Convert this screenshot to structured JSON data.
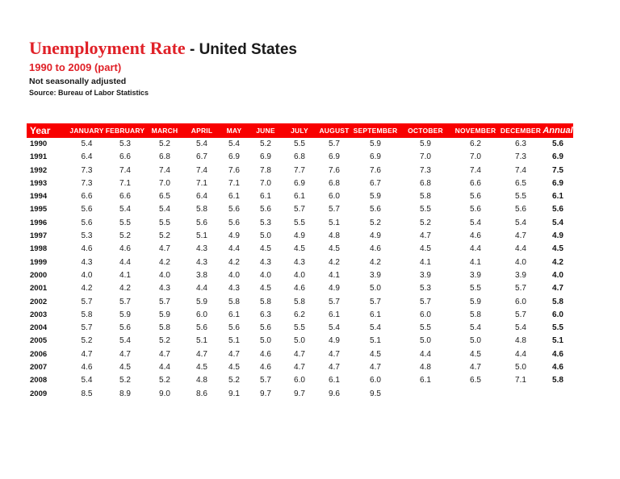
{
  "page": {
    "title_red": "Unemployment Rate",
    "title_black": " - United States",
    "subtitle": "1990 to 2009 (part)",
    "note": "Not seasonally adjusted",
    "source": "Source: Bureau of Labor Statistics"
  },
  "colors": {
    "accent_red": "#e02128",
    "header_bar_red": "#f80000",
    "header_text": "#ffffff"
  },
  "table": {
    "year_header": "Year",
    "month_headers": [
      "JANUARY",
      "FEBRUARY",
      "MARCH",
      "APRIL",
      "MAY",
      "JUNE",
      "JULY",
      "AUGUST",
      "SEPTEMBER",
      "OCTOBER",
      "NOVEMBER",
      "DECEMBER"
    ],
    "annual_header": "Annual",
    "rows": [
      {
        "year": "1990",
        "values": [
          "5.4",
          "5.3",
          "5.2",
          "5.4",
          "5.4",
          "5.2",
          "5.5",
          "5.7",
          "5.9",
          "5.9",
          "6.2",
          "6.3"
        ],
        "annual": "5.6"
      },
      {
        "year": "1991",
        "values": [
          "6.4",
          "6.6",
          "6.8",
          "6.7",
          "6.9",
          "6.9",
          "6.8",
          "6.9",
          "6.9",
          "7.0",
          "7.0",
          "7.3"
        ],
        "annual": "6.9"
      },
      {
        "year": "1992",
        "values": [
          "7.3",
          "7.4",
          "7.4",
          "7.4",
          "7.6",
          "7.8",
          "7.7",
          "7.6",
          "7.6",
          "7.3",
          "7.4",
          "7.4"
        ],
        "annual": "7.5"
      },
      {
        "year": "1993",
        "values": [
          "7.3",
          "7.1",
          "7.0",
          "7.1",
          "7.1",
          "7.0",
          "6.9",
          "6.8",
          "6.7",
          "6.8",
          "6.6",
          "6.5"
        ],
        "annual": "6.9"
      },
      {
        "year": "1994",
        "values": [
          "6.6",
          "6.6",
          "6.5",
          "6.4",
          "6.1",
          "6.1",
          "6.1",
          "6.0",
          "5.9",
          "5.8",
          "5.6",
          "5.5"
        ],
        "annual": "6.1"
      },
      {
        "year": "1995",
        "values": [
          "5.6",
          "5.4",
          "5.4",
          "5.8",
          "5.6",
          "5.6",
          "5.7",
          "5.7",
          "5.6",
          "5.5",
          "5.6",
          "5.6"
        ],
        "annual": "5.6"
      },
      {
        "year": "1996",
        "values": [
          "5.6",
          "5.5",
          "5.5",
          "5.6",
          "5.6",
          "5.3",
          "5.5",
          "5.1",
          "5.2",
          "5.2",
          "5.4",
          "5.4"
        ],
        "annual": "5.4"
      },
      {
        "year": "1997",
        "values": [
          "5.3",
          "5.2",
          "5.2",
          "5.1",
          "4.9",
          "5.0",
          "4.9",
          "4.8",
          "4.9",
          "4.7",
          "4.6",
          "4.7"
        ],
        "annual": "4.9"
      },
      {
        "year": "1998",
        "values": [
          "4.6",
          "4.6",
          "4.7",
          "4.3",
          "4.4",
          "4.5",
          "4.5",
          "4.5",
          "4.6",
          "4.5",
          "4.4",
          "4.4"
        ],
        "annual": "4.5"
      },
      {
        "year": "1999",
        "values": [
          "4.3",
          "4.4",
          "4.2",
          "4.3",
          "4.2",
          "4.3",
          "4.3",
          "4.2",
          "4.2",
          "4.1",
          "4.1",
          "4.0"
        ],
        "annual": "4.2"
      },
      {
        "year": "2000",
        "values": [
          "4.0",
          "4.1",
          "4.0",
          "3.8",
          "4.0",
          "4.0",
          "4.0",
          "4.1",
          "3.9",
          "3.9",
          "3.9",
          "3.9"
        ],
        "annual": "4.0"
      },
      {
        "year": "2001",
        "values": [
          "4.2",
          "4.2",
          "4.3",
          "4.4",
          "4.3",
          "4.5",
          "4.6",
          "4.9",
          "5.0",
          "5.3",
          "5.5",
          "5.7"
        ],
        "annual": "4.7"
      },
      {
        "year": "2002",
        "values": [
          "5.7",
          "5.7",
          "5.7",
          "5.9",
          "5.8",
          "5.8",
          "5.8",
          "5.7",
          "5.7",
          "5.7",
          "5.9",
          "6.0"
        ],
        "annual": "5.8"
      },
      {
        "year": "2003",
        "values": [
          "5.8",
          "5.9",
          "5.9",
          "6.0",
          "6.1",
          "6.3",
          "6.2",
          "6.1",
          "6.1",
          "6.0",
          "5.8",
          "5.7"
        ],
        "annual": "6.0"
      },
      {
        "year": "2004",
        "values": [
          "5.7",
          "5.6",
          "5.8",
          "5.6",
          "5.6",
          "5.6",
          "5.5",
          "5.4",
          "5.4",
          "5.5",
          "5.4",
          "5.4"
        ],
        "annual": "5.5"
      },
      {
        "year": "2005",
        "values": [
          "5.2",
          "5.4",
          "5.2",
          "5.1",
          "5.1",
          "5.0",
          "5.0",
          "4.9",
          "5.1",
          "5.0",
          "5.0",
          "4.8"
        ],
        "annual": "5.1"
      },
      {
        "year": "2006",
        "values": [
          "4.7",
          "4.7",
          "4.7",
          "4.7",
          "4.7",
          "4.6",
          "4.7",
          "4.7",
          "4.5",
          "4.4",
          "4.5",
          "4.4"
        ],
        "annual": "4.6"
      },
      {
        "year": "2007",
        "values": [
          "4.6",
          "4.5",
          "4.4",
          "4.5",
          "4.5",
          "4.6",
          "4.7",
          "4.7",
          "4.7",
          "4.8",
          "4.7",
          "5.0"
        ],
        "annual": "4.6"
      },
      {
        "year": "2008",
        "values": [
          "5.4",
          "5.2",
          "5.2",
          "4.8",
          "5.2",
          "5.7",
          "6.0",
          "6.1",
          "6.0",
          "6.1",
          "6.5",
          "7.1"
        ],
        "annual": "5.8"
      },
      {
        "year": "2009",
        "values": [
          "8.5",
          "8.9",
          "9.0",
          "8.6",
          "9.1",
          "9.7",
          "9.7",
          "9.6",
          "9.5",
          "",
          "",
          ""
        ],
        "annual": ""
      }
    ]
  }
}
